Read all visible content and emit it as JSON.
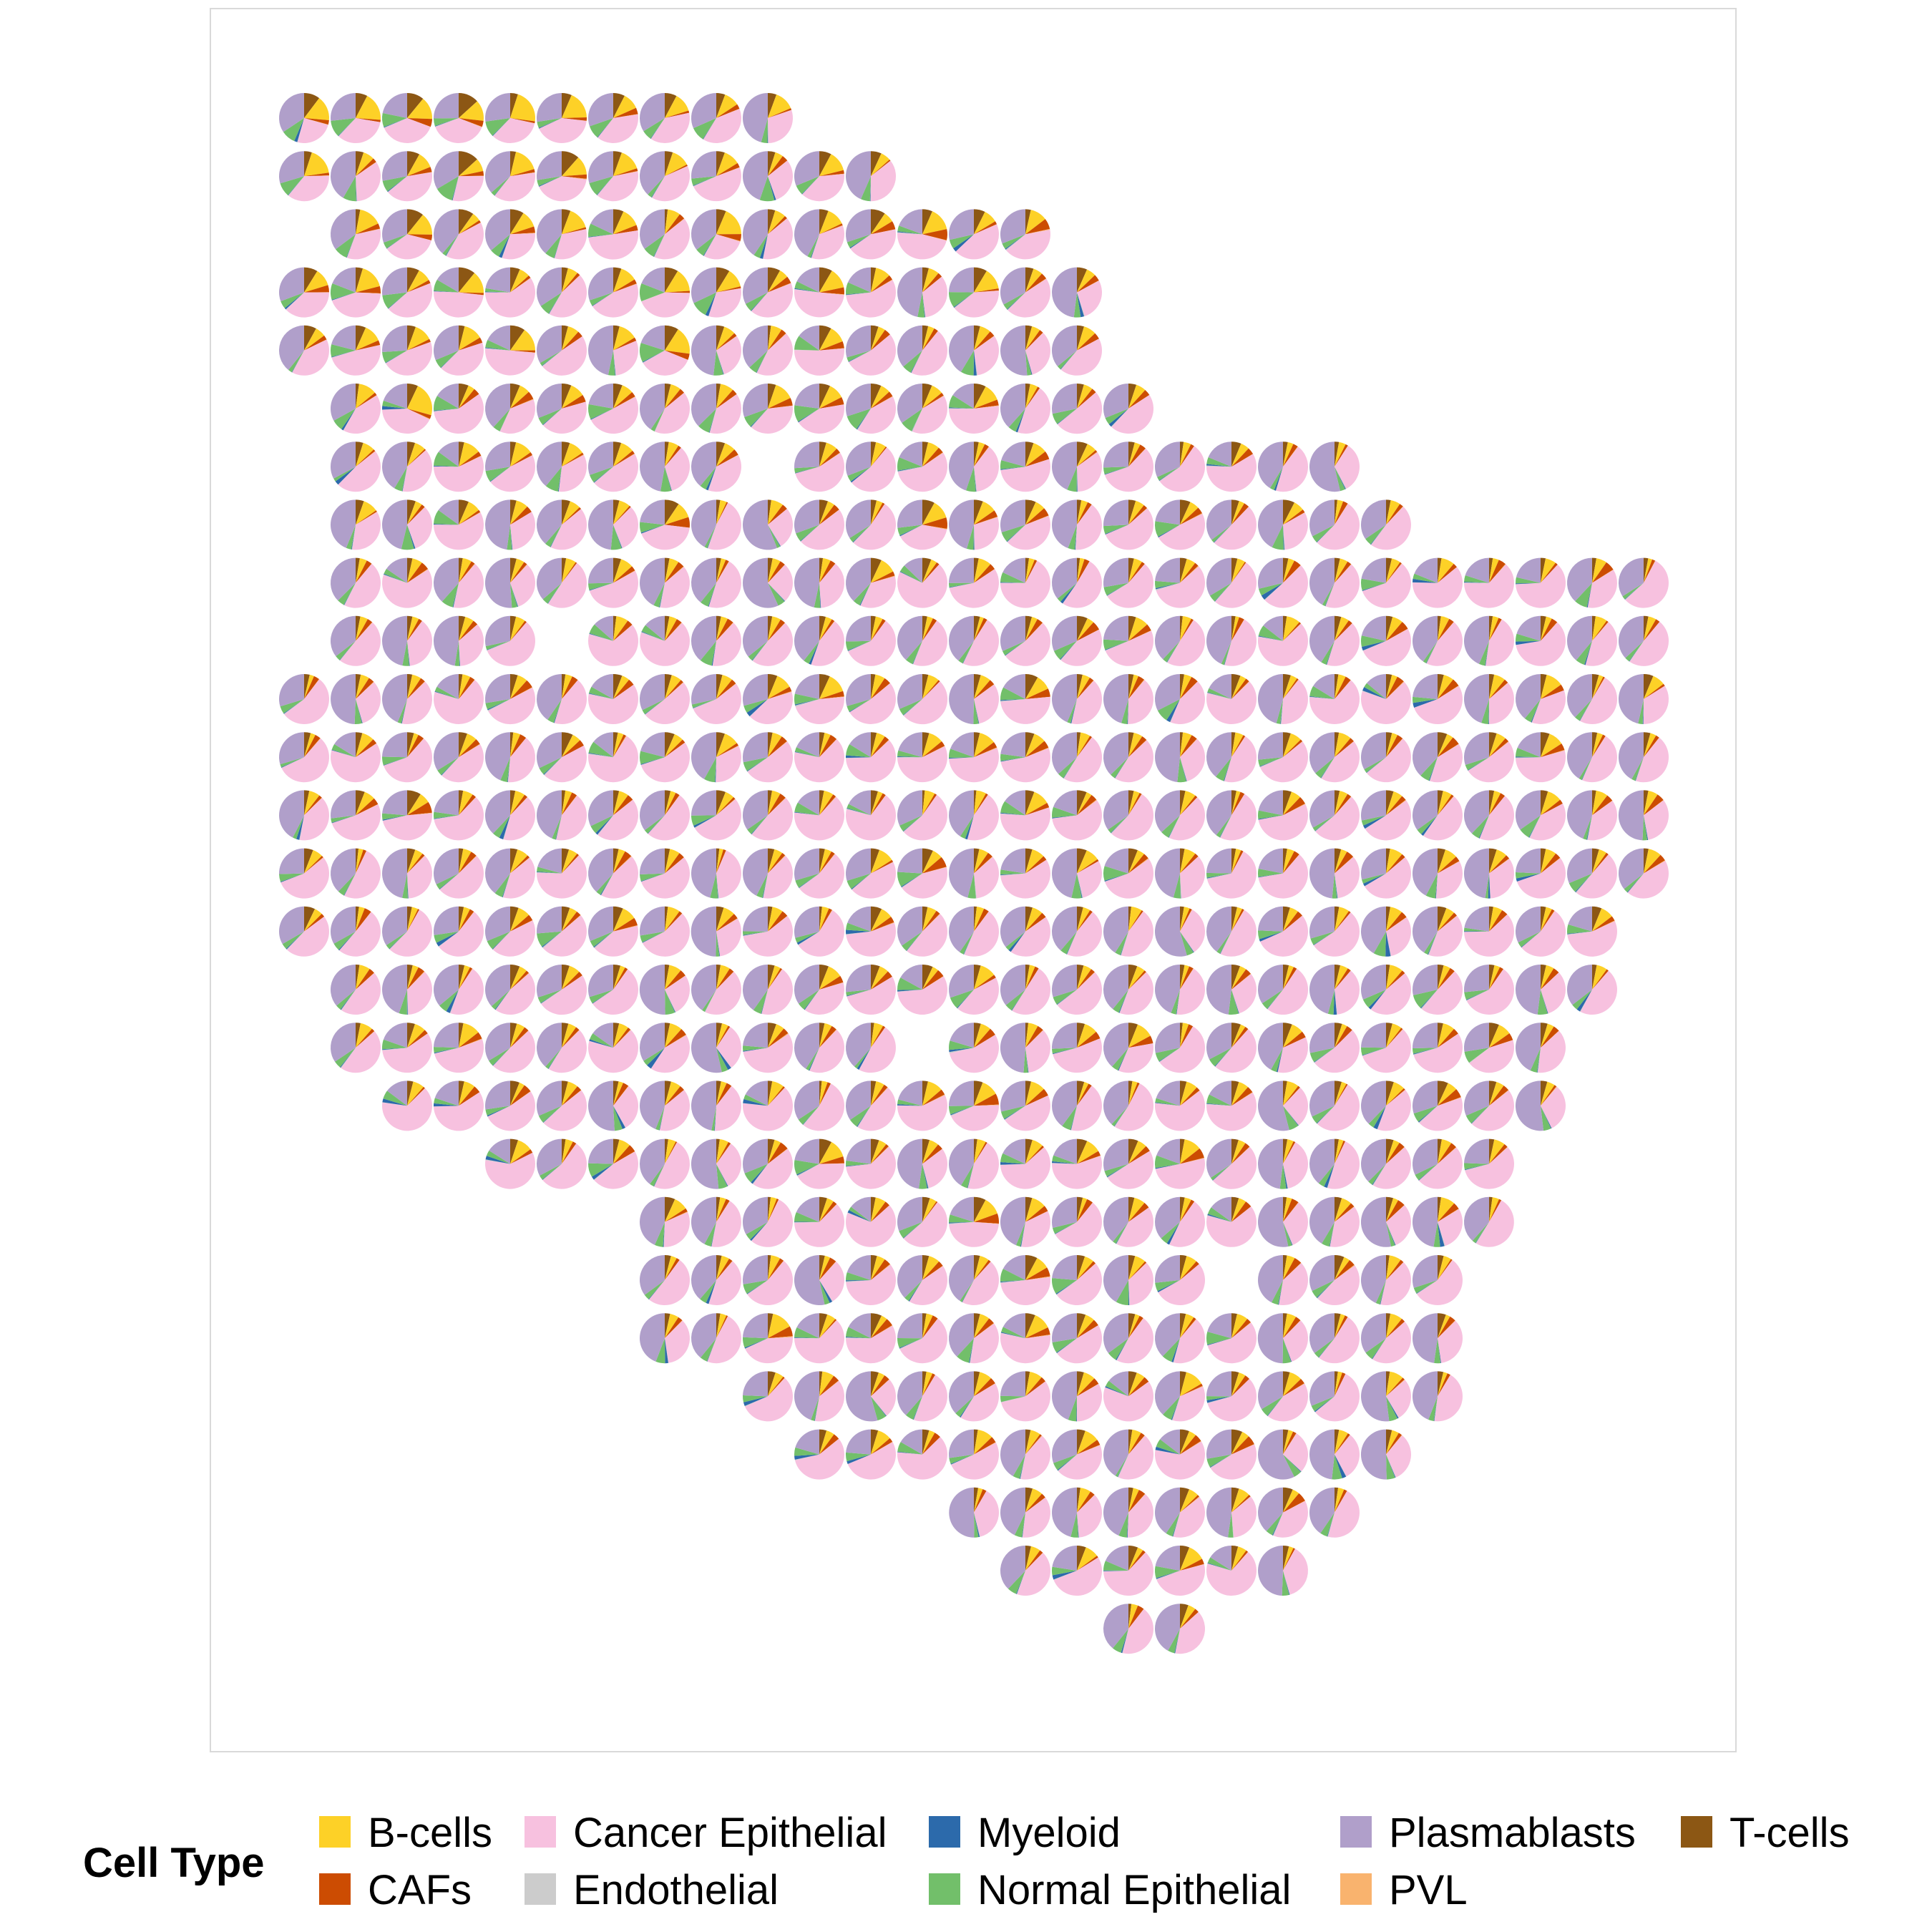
{
  "chart_data": {
    "type": "spatial-pie",
    "description_visible": false,
    "grid": false,
    "panel_border_color": "#d9d9d9",
    "legend": {
      "title": "Cell Type",
      "position": "bottom",
      "entries": [
        {
          "name": "B-cells",
          "color": "#FDD127"
        },
        {
          "name": "CAFs",
          "color": "#CC4C02"
        },
        {
          "name": "Cancer Epithelial",
          "color": "#F7C1DF"
        },
        {
          "name": "Endothelial",
          "color": "#CCCCCC"
        },
        {
          "name": "Myeloid",
          "color": "#2C6AAB"
        },
        {
          "name": "Normal Epithelial",
          "color": "#72BF6A"
        },
        {
          "name": "Plasmablasts",
          "color": "#B09FCA"
        },
        {
          "name": "PVL",
          "color": "#F9B36E"
        },
        {
          "name": "T-cells",
          "color": "#8C5714"
        }
      ]
    },
    "categories": [
      "B-cells",
      "CAFs",
      "Cancer Epithelial",
      "Endothelial",
      "Myeloid",
      "Normal Epithelial",
      "Plasmablasts",
      "PVL",
      "T-cells"
    ],
    "row_spans": [
      [
        [
          0,
          9
        ]
      ],
      [
        [
          0,
          11
        ]
      ],
      [
        [
          1,
          14
        ]
      ],
      [
        [
          0,
          15
        ]
      ],
      [
        [
          0,
          15
        ]
      ],
      [
        [
          1,
          16
        ]
      ],
      [
        [
          1,
          8
        ],
        [
          10,
          20
        ]
      ],
      [
        [
          1,
          21
        ]
      ],
      [
        [
          1,
          26
        ]
      ],
      [
        [
          1,
          4
        ],
        [
          6,
          26
        ]
      ],
      [
        [
          0,
          26
        ]
      ],
      [
        [
          0,
          26
        ]
      ],
      [
        [
          0,
          26
        ]
      ],
      [
        [
          0,
          26
        ]
      ],
      [
        [
          0,
          25
        ]
      ],
      [
        [
          1,
          25
        ]
      ],
      [
        [
          1,
          11
        ],
        [
          13,
          24
        ]
      ],
      [
        [
          2,
          24
        ]
      ],
      [
        [
          4,
          23
        ]
      ],
      [
        [
          7,
          23
        ]
      ],
      [
        [
          7,
          17
        ],
        [
          19,
          22
        ]
      ],
      [
        [
          7,
          22
        ]
      ],
      [
        [
          9,
          22
        ]
      ],
      [
        [
          10,
          21
        ]
      ],
      [
        [
          13,
          20
        ]
      ],
      [
        [
          14,
          19
        ]
      ],
      [
        [
          16,
          17
        ]
      ]
    ],
    "spots": "one pie per spot on the tissue grid; each pie shows per-spot cell-type proportions (dominant: Cancer Epithelial and Plasmablasts; B-cells and T-cells enriched in upper-left region)"
  }
}
